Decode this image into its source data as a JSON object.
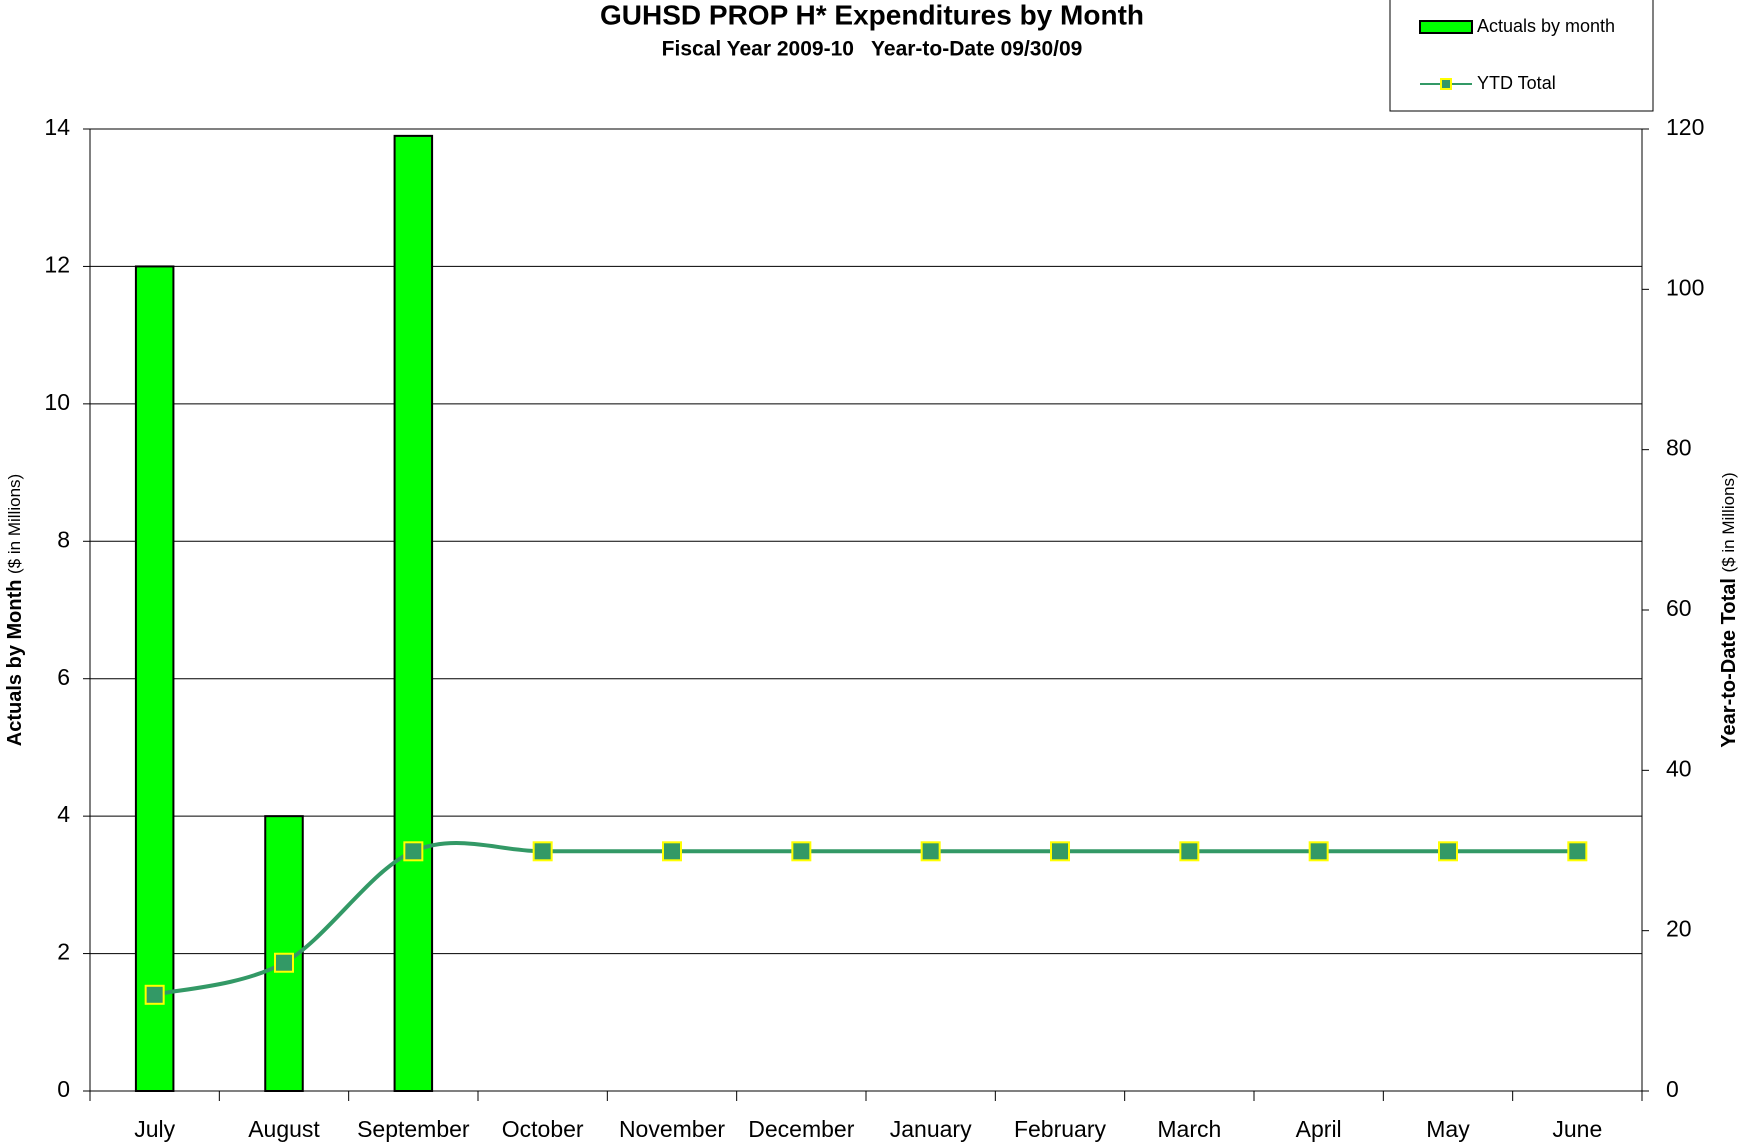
{
  "chart_data": {
    "type": "bar_line",
    "title": "GUHSD PROP H* Expenditures by Month",
    "subtitle": "Fiscal Year 2009-10   Year-to-Date 09/30/09",
    "ylabel": {
      "main": "Actuals by Month",
      "unit": "($ in Millions)"
    },
    "y2label": {
      "main": "Year-to-Date Total",
      "unit": "($ in Millions)"
    },
    "categories": [
      "July",
      "August",
      "September",
      "October",
      "November",
      "December",
      "January",
      "February",
      "March",
      "April",
      "May",
      "June"
    ],
    "series": [
      {
        "name": "Actuals by month",
        "type": "bar",
        "color": "#00ff00",
        "values": [
          12,
          4,
          13.9,
          null,
          null,
          null,
          null,
          null,
          null,
          null,
          null,
          null
        ]
      },
      {
        "name": "YTD Total",
        "type": "line",
        "axis": "y2",
        "color": "#339966",
        "marker_color": "#ffff00",
        "values": [
          12,
          16,
          29.9,
          29.9,
          29.9,
          29.9,
          29.9,
          29.9,
          29.9,
          29.9,
          29.9,
          29.9
        ]
      }
    ],
    "ylim": [
      0,
      14
    ],
    "yticks": [
      0,
      2,
      4,
      6,
      8,
      10,
      12,
      14
    ],
    "y2lim": [
      0,
      120
    ],
    "y2ticks": [
      0,
      20,
      40,
      60,
      80,
      100,
      120
    ],
    "grid": true,
    "legend": "top-right"
  }
}
